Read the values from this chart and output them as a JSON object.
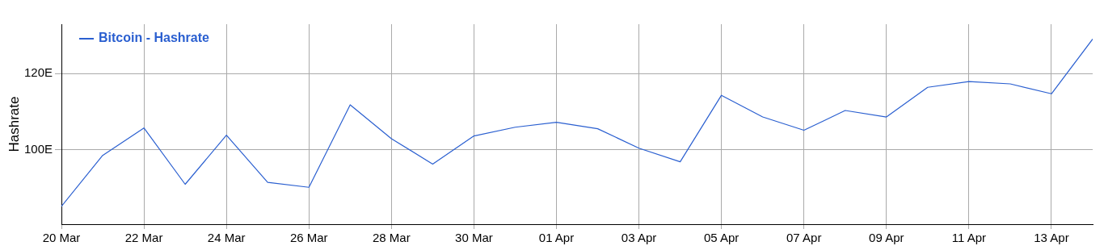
{
  "chart_data": {
    "type": "line",
    "ylabel": "Hashrate",
    "legend": "top left",
    "grid": true,
    "marker": "none",
    "line_style": "solid",
    "x": [
      "--03-20",
      "--03-21",
      "--03-22",
      "--03-23",
      "--03-24",
      "--03-25",
      "--03-26",
      "--03-27",
      "--03-28",
      "--03-29",
      "--03-30",
      "--03-31",
      "--04-01",
      "--04-02",
      "--04-03",
      "--04-04",
      "--04-05",
      "--04-06",
      "--04-07",
      "--04-08",
      "--04-09",
      "--04-10",
      "--04-11",
      "--04-12",
      "--04-13",
      "--04-14"
    ],
    "series": [
      {
        "name": "Bitcoin - Hashrate",
        "color": "#2a5fd0",
        "values": [
          85.1,
          98.5,
          105.7,
          90.9,
          103.8,
          91.4,
          90.1,
          111.8,
          102.9,
          96.2,
          103.6,
          105.9,
          107.2,
          105.5,
          100.4,
          96.8,
          114.3,
          108.6,
          105.1,
          110.3,
          108.6,
          116.4,
          117.9,
          117.3,
          114.7,
          129.1
        ]
      }
    ],
    "xlim": [
      "--03-20",
      "--04-14"
    ],
    "xticks": [
      {
        "value": "--03-20",
        "label": "20 Mar"
      },
      {
        "value": "--03-22",
        "label": "22 Mar"
      },
      {
        "value": "--03-24",
        "label": "24 Mar"
      },
      {
        "value": "--03-26",
        "label": "26 Mar"
      },
      {
        "value": "--03-28",
        "label": "28 Mar"
      },
      {
        "value": "--03-30",
        "label": "30 Mar"
      },
      {
        "value": "--04-01",
        "label": "01 Apr"
      },
      {
        "value": "--04-03",
        "label": "03 Apr"
      },
      {
        "value": "--04-05",
        "label": "05 Apr"
      },
      {
        "value": "--04-07",
        "label": "07 Apr"
      },
      {
        "value": "--04-09",
        "label": "09 Apr"
      },
      {
        "value": "--04-11",
        "label": "11 Apr"
      },
      {
        "value": "--04-13",
        "label": "13 Apr"
      }
    ],
    "ylim": [
      80.4,
      133
    ],
    "yticks": [
      {
        "value": 100,
        "label": "100E"
      },
      {
        "value": 120,
        "label": "120E"
      }
    ]
  }
}
